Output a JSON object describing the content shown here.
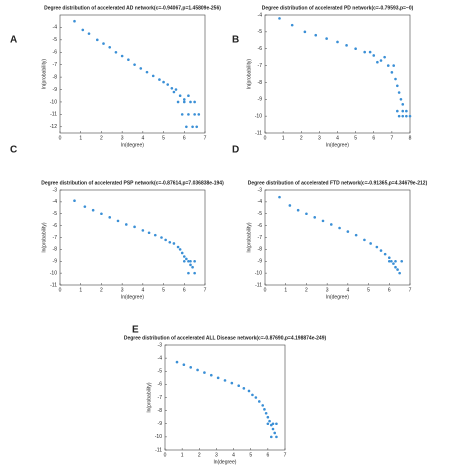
{
  "chart_data": [
    {
      "type": "scatter",
      "label": "A",
      "title": "Degree distribution of accelerated AD network(c=-0.94067,p=1.45809e-256)",
      "xlabel": "ln(degree)",
      "ylabel": "ln(probability)",
      "color": "#3a8fd6",
      "xlim": [
        0,
        7
      ],
      "xticks": [
        0,
        1,
        2,
        3,
        4,
        5,
        6,
        7
      ],
      "ylim": [
        -12.5,
        -3
      ],
      "yticks": [
        -4,
        -5,
        -6,
        -7,
        -8,
        -9,
        -10,
        -11,
        -12
      ],
      "x": [
        0.7,
        1.1,
        1.4,
        1.8,
        2.1,
        2.4,
        2.7,
        3.0,
        3.3,
        3.6,
        3.9,
        4.2,
        4.5,
        4.8,
        5.0,
        5.2,
        5.4,
        5.5,
        5.6,
        5.8,
        6.0,
        6.2,
        5.7,
        6.0,
        6.3,
        6.5,
        5.9,
        6.2,
        6.5,
        6.7,
        6.1,
        6.4,
        6.6
      ],
      "y": [
        -3.5,
        -4.2,
        -4.5,
        -5.0,
        -5.3,
        -5.6,
        -6.0,
        -6.3,
        -6.6,
        -7.0,
        -7.3,
        -7.6,
        -7.9,
        -8.2,
        -8.4,
        -8.6,
        -8.9,
        -9.2,
        -9.0,
        -9.5,
        -9.8,
        -9.5,
        -10,
        -10,
        -10,
        -10,
        -11,
        -11,
        -11,
        -11,
        -12,
        -12,
        -12
      ]
    },
    {
      "type": "scatter",
      "label": "B",
      "title": "Degree distribution of accelerated PD network(c=-0.79593,p=~0)",
      "xlabel": "ln(degree)",
      "ylabel": "ln(probability)",
      "color": "#3a8fd6",
      "xlim": [
        0,
        8
      ],
      "xticks": [
        0,
        1,
        2,
        3,
        4,
        5,
        6,
        7,
        8
      ],
      "ylim": [
        -11,
        -4
      ],
      "yticks": [
        -4,
        -5,
        -6,
        -7,
        -8,
        -9,
        -10,
        -11
      ],
      "x": [
        0.8,
        1.5,
        2.2,
        2.8,
        3.4,
        4.0,
        4.5,
        5.0,
        5.5,
        5.8,
        6.0,
        6.2,
        6.4,
        6.6,
        6.8,
        7.0,
        7.1,
        7.2,
        7.3,
        7.4,
        7.5,
        7.6,
        7.3,
        7.6,
        7.8,
        7.4,
        7.6,
        7.8,
        8.0
      ],
      "y": [
        -4.2,
        -4.6,
        -5.0,
        -5.2,
        -5.4,
        -5.6,
        -5.8,
        -6.0,
        -6.2,
        -6.2,
        -6.4,
        -6.8,
        -6.7,
        -6.5,
        -7.0,
        -7.4,
        -7.0,
        -7.8,
        -8.2,
        -8.6,
        -9.0,
        -9.3,
        -9.7,
        -9.7,
        -9.7,
        -10,
        -10,
        -10,
        -10
      ]
    },
    {
      "type": "scatter",
      "label": "C",
      "title": "Degree distribution of accelerated PSP network(c=-0.87614,p=7.036838e-194)",
      "xlabel": "ln(degree)",
      "ylabel": "ln(probability)",
      "color": "#3a8fd6",
      "xlim": [
        0,
        7
      ],
      "xticks": [
        0,
        1,
        2,
        3,
        4,
        5,
        6,
        7
      ],
      "ylim": [
        -11,
        -3
      ],
      "yticks": [
        -3,
        -4,
        -5,
        -6,
        -7,
        -8,
        -9,
        -10,
        -11
      ],
      "x": [
        0.7,
        1.2,
        1.6,
        2.0,
        2.4,
        2.8,
        3.2,
        3.6,
        4.0,
        4.3,
        4.6,
        4.9,
        5.1,
        5.3,
        5.5,
        5.7,
        5.8,
        5.9,
        6.0,
        6.1,
        6.2,
        6.3,
        6.4,
        6.0,
        6.3,
        6.5,
        6.2,
        6.5
      ],
      "y": [
        -3.9,
        -4.4,
        -4.7,
        -5.0,
        -5.3,
        -5.6,
        -5.9,
        -6.1,
        -6.4,
        -6.6,
        -6.8,
        -7.0,
        -7.2,
        -7.4,
        -7.5,
        -7.8,
        -8.0,
        -8.3,
        -8.6,
        -8.8,
        -9.0,
        -9.3,
        -9.5,
        -9.0,
        -9.0,
        -9.0,
        -10,
        -10
      ]
    },
    {
      "type": "scatter",
      "label": "D",
      "title": "Degree distribution of accelerated FTD network(c=-0.91365,p=4.34679e-212)",
      "xlabel": "ln(degree)",
      "ylabel": "ln(probability)",
      "color": "#3a8fd6",
      "xlim": [
        0,
        7
      ],
      "xticks": [
        0,
        1,
        2,
        3,
        4,
        5,
        6,
        7
      ],
      "ylim": [
        -11,
        -3
      ],
      "yticks": [
        -3,
        -4,
        -5,
        -6,
        -7,
        -8,
        -9,
        -10,
        -11
      ],
      "x": [
        0.7,
        1.2,
        1.6,
        2.0,
        2.4,
        2.8,
        3.2,
        3.6,
        4.0,
        4.4,
        4.8,
        5.1,
        5.4,
        5.6,
        5.8,
        6.0,
        6.1,
        6.2,
        6.3,
        6.4,
        6.5,
        6.0,
        6.3,
        6.6
      ],
      "y": [
        -3.6,
        -4.3,
        -4.7,
        -5.0,
        -5.3,
        -5.6,
        -5.9,
        -6.2,
        -6.5,
        -6.8,
        -7.2,
        -7.5,
        -7.8,
        -8.1,
        -8.4,
        -8.7,
        -9.0,
        -9.2,
        -9.5,
        -9.7,
        -10,
        -9.0,
        -9.0,
        -9.0
      ]
    },
    {
      "type": "scatter",
      "label": "E",
      "title": "Degree distribution of accelerated ALL Disease network(c=-0.87690,p=4.198874e-249)",
      "xlabel": "ln(degree)",
      "ylabel": "ln(probability)",
      "color": "#3a8fd6",
      "xlim": [
        0,
        7
      ],
      "xticks": [
        0,
        1,
        2,
        3,
        4,
        5,
        6,
        7
      ],
      "ylim": [
        -11,
        -3
      ],
      "yticks": [
        -3,
        -4,
        -5,
        -6,
        -7,
        -8,
        -9,
        -10,
        -11
      ],
      "x": [
        0.7,
        1.1,
        1.5,
        1.9,
        2.3,
        2.7,
        3.1,
        3.5,
        3.9,
        4.3,
        4.6,
        4.9,
        5.1,
        5.3,
        5.5,
        5.7,
        5.8,
        5.9,
        6.0,
        6.1,
        6.2,
        6.3,
        6.4,
        6.0,
        6.3,
        6.5,
        6.2,
        6.5
      ],
      "y": [
        -4.3,
        -4.5,
        -4.7,
        -4.9,
        -5.1,
        -5.3,
        -5.5,
        -5.7,
        -5.9,
        -6.1,
        -6.3,
        -6.5,
        -6.8,
        -7.0,
        -7.3,
        -7.6,
        -7.9,
        -8.2,
        -8.5,
        -8.8,
        -9.1,
        -9.4,
        -9.7,
        -9.0,
        -9.0,
        -9.0,
        -10,
        -10
      ]
    }
  ]
}
